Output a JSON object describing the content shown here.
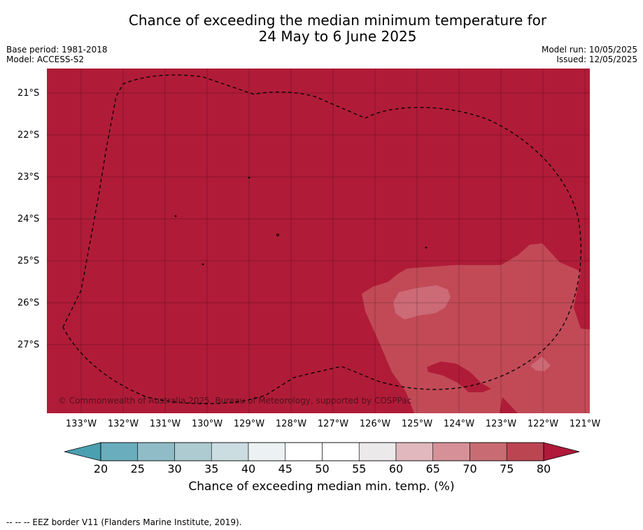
{
  "title": {
    "line1": "Chance of exceeding the median minimum temperature for",
    "line2": "24 May to 6 June 2025"
  },
  "meta_left": {
    "base_period": "Base period: 1981-2018",
    "model": "Model: ACCESS-S2"
  },
  "meta_right": {
    "model_run": "Model run: 10/05/2025",
    "issued": "Issued: 12/05/2025"
  },
  "map": {
    "copyright": "© Commonwealth of Australia 2025, Bureau of Meteorology, supported by COSPPac",
    "lat_labels": [
      "21°S",
      "22°S",
      "23°S",
      "24°S",
      "25°S",
      "26°S",
      "27°S"
    ],
    "lon_labels": [
      "133°W",
      "132°W",
      "131°W",
      "130°W",
      "129°W",
      "128°W",
      "127°W",
      "126°W",
      "125°W",
      "124°W",
      "123°W",
      "122°W",
      "121°W"
    ],
    "dominant_color": "#b01c38",
    "zone_colors": {
      "70-75": "#c14a56",
      "65-70": "#cc6a76"
    }
  },
  "colorbar": {
    "ticks": [
      "20",
      "25",
      "30",
      "35",
      "40",
      "45",
      "50",
      "55",
      "60",
      "65",
      "70",
      "75",
      "80"
    ],
    "colors": [
      "#6aaebd",
      "#8fbcc7",
      "#adcbd1",
      "#cbdde0",
      "#ecf2f3",
      "#ffffff",
      "#ffffff",
      "#ebe9e9",
      "#e0b8bd",
      "#d69198",
      "#c96b73",
      "#bb4652"
    ],
    "extend_low_color": "#4aa0b0",
    "extend_high_color": "#b0193a",
    "label": "Chance of exceeding median min. temp. (%)"
  },
  "footnote": "--  --  -- EEZ border V11 (Flanders Marine Institute, 2019)."
}
